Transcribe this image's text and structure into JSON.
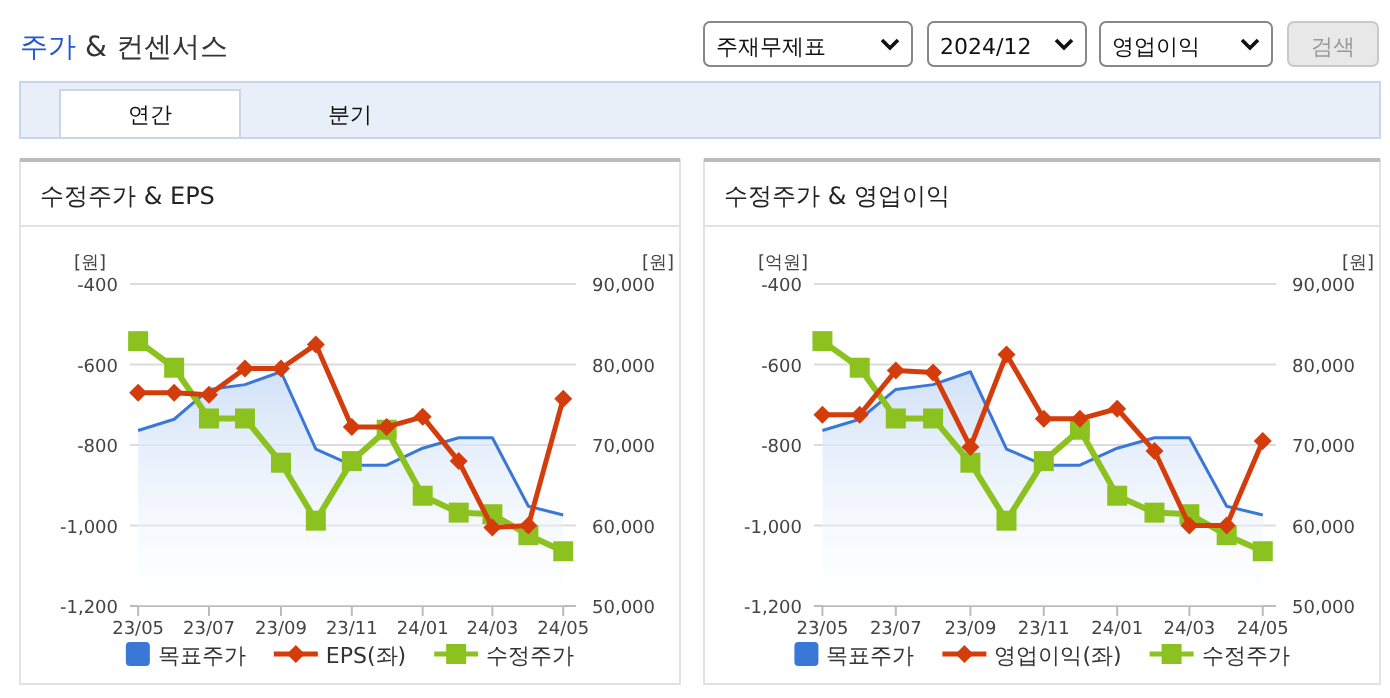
{
  "chart_data": [
    {
      "type": "other",
      "title": "주가 & 컨센서스",
      "annotations": [
        "주재무제표",
        "2024/12",
        "영업이익",
        "검색",
        "연간",
        "분기"
      ]
    },
    {
      "type": "line",
      "title": "수정주가 & EPS",
      "ylabel": "[원]",
      "y2label": "[원]",
      "x": [
        "2023-05",
        "2023-06",
        "2023-07",
        "2023-08",
        "2023-09",
        "2023-10",
        "2023-11",
        "2023-12",
        "2024-01",
        "2024-02",
        "2024-03",
        "2024-04",
        "2024-05"
      ],
      "xlim": [
        "2023-04-24",
        "2024-05-12"
      ],
      "xticks": [
        {
          "value": "2023-05",
          "label": "23/05"
        },
        {
          "value": "2023-07",
          "label": "23/07"
        },
        {
          "value": "2023-09",
          "label": "23/09"
        },
        {
          "value": "2023-11",
          "label": "23/11"
        },
        {
          "value": "2024-01",
          "label": "24/01"
        },
        {
          "value": "2024-03",
          "label": "24/03"
        },
        {
          "value": "2024-05",
          "label": "24/05"
        }
      ],
      "ylim": [
        -1200,
        -400
      ],
      "yticks": [
        {
          "value": -1200,
          "label": "-1,200"
        },
        {
          "value": -1000,
          "label": "-1,000"
        },
        {
          "value": -800,
          "label": "-800"
        },
        {
          "value": -600,
          "label": "-600"
        },
        {
          "value": -400,
          "label": "-400"
        }
      ],
      "y2lim": [
        50000,
        90000
      ],
      "y2ticks": [
        {
          "value": 50000,
          "label": "50,000"
        },
        {
          "value": 60000,
          "label": "60,000"
        },
        {
          "value": 70000,
          "label": "70,000"
        },
        {
          "value": 80000,
          "label": "80,000"
        },
        {
          "value": 90000,
          "label": "90,000"
        }
      ],
      "grid": "y",
      "legend": "bottom",
      "series": [
        {
          "name": "목표주가",
          "type": "area",
          "axis": "y2",
          "color": "#3a78d8",
          "marker": "none",
          "values": [
            71800,
            73200,
            76900,
            77500,
            79100,
            69500,
            67500,
            67500,
            69600,
            70900,
            70900,
            62400,
            61300
          ]
        },
        {
          "name": "EPS(좌)",
          "type": "line",
          "color": "#d43d0b",
          "marker": "diamond",
          "values": [
            -670,
            -670,
            -675,
            -610,
            -610,
            -550,
            -755,
            -755,
            -730,
            -840,
            -1005,
            -1000,
            -685
          ]
        },
        {
          "name": "수정주가",
          "type": "line",
          "axis": "y2",
          "color": "#8cc21f",
          "marker": "square",
          "values": [
            82900,
            79600,
            73300,
            73300,
            67800,
            60600,
            68000,
            71900,
            63700,
            61600,
            61400,
            58800,
            56800
          ]
        }
      ]
    },
    {
      "type": "line",
      "title": "수정주가 & 영업이익",
      "ylabel": "[억원]",
      "y2label": "[원]",
      "x": [
        "2023-05",
        "2023-06",
        "2023-07",
        "2023-08",
        "2023-09",
        "2023-10",
        "2023-11",
        "2023-12",
        "2024-01",
        "2024-02",
        "2024-03",
        "2024-04",
        "2024-05"
      ],
      "xlim": [
        "2023-04-24",
        "2024-05-12"
      ],
      "xticks": [
        {
          "value": "2023-05",
          "label": "23/05"
        },
        {
          "value": "2023-07",
          "label": "23/07"
        },
        {
          "value": "2023-09",
          "label": "23/09"
        },
        {
          "value": "2023-11",
          "label": "23/11"
        },
        {
          "value": "2024-01",
          "label": "24/01"
        },
        {
          "value": "2024-03",
          "label": "24/03"
        },
        {
          "value": "2024-05",
          "label": "24/05"
        }
      ],
      "ylim": [
        -1200,
        -400
      ],
      "yticks": [
        {
          "value": -1200,
          "label": "-1,200"
        },
        {
          "value": -1000,
          "label": "-1,000"
        },
        {
          "value": -800,
          "label": "-800"
        },
        {
          "value": -600,
          "label": "-600"
        },
        {
          "value": -400,
          "label": "-400"
        }
      ],
      "y2lim": [
        50000,
        90000
      ],
      "y2ticks": [
        {
          "value": 50000,
          "label": "50,000"
        },
        {
          "value": 60000,
          "label": "60,000"
        },
        {
          "value": 70000,
          "label": "70,000"
        },
        {
          "value": 80000,
          "label": "80,000"
        },
        {
          "value": 90000,
          "label": "90,000"
        }
      ],
      "grid": "y",
      "legend": "bottom",
      "series": [
        {
          "name": "목표주가",
          "type": "area",
          "axis": "y2",
          "color": "#3a78d8",
          "marker": "none",
          "values": [
            71800,
            73200,
            76900,
            77500,
            79100,
            69500,
            67500,
            67500,
            69600,
            70900,
            70900,
            62400,
            61300
          ]
        },
        {
          "name": "영업이익(좌)",
          "type": "line",
          "color": "#d43d0b",
          "marker": "diamond",
          "values": [
            -725,
            -725,
            -615,
            -620,
            -805,
            -575,
            -735,
            -735,
            -710,
            -815,
            -1000,
            -1000,
            -790
          ]
        },
        {
          "name": "수정주가",
          "type": "line",
          "axis": "y2",
          "color": "#8cc21f",
          "marker": "square",
          "values": [
            82900,
            79600,
            73300,
            73300,
            67800,
            60600,
            68000,
            71900,
            63700,
            61600,
            61400,
            58800,
            56800
          ]
        }
      ]
    }
  ]
}
